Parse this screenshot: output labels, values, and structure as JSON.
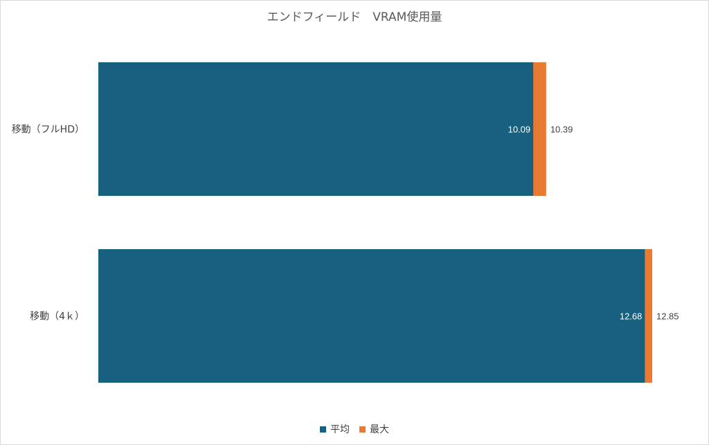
{
  "chart_data": {
    "type": "bar",
    "orientation": "horizontal",
    "stacked": false,
    "overlap": true,
    "title": "エンドフィールド　VRAM使用量",
    "categories": [
      "移動（フルHD）",
      "移動（4ｋ）"
    ],
    "series": [
      {
        "name": "平均",
        "values": [
          10.09,
          12.68
        ],
        "color": "#17607f"
      },
      {
        "name": "最大",
        "values": [
          10.39,
          12.85
        ],
        "color": "#e97a32"
      }
    ],
    "xlim": [
      0,
      13.3
    ],
    "grid": false,
    "legend_position": "bottom"
  }
}
